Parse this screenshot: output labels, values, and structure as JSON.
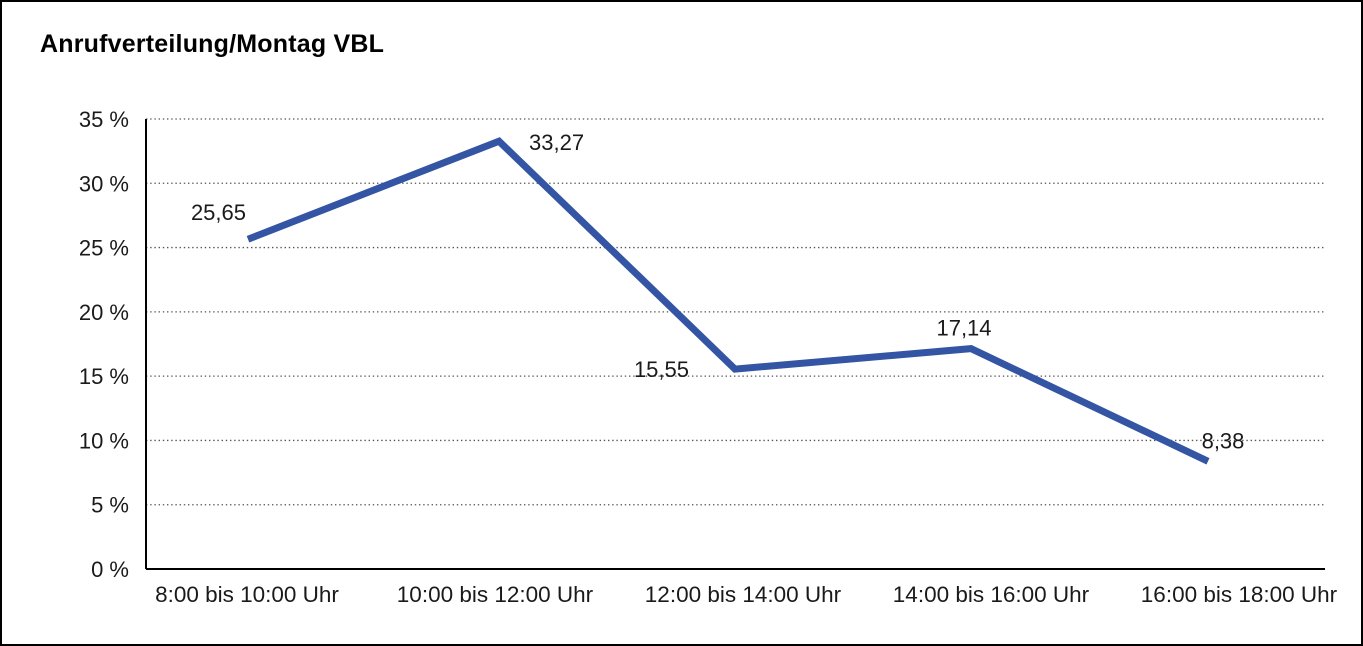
{
  "figure": {
    "title": "Anrufverteilung/Montag VBL"
  },
  "chart_data": {
    "type": "line",
    "title": "Anrufverteilung/Montag VBL",
    "categories": [
      "8:00 bis 10:00 Uhr",
      "10:00 bis 12:00 Uhr",
      "12:00 bis 14:00 Uhr",
      "14:00 bis 16:00 Uhr",
      "16:00 bis 18:00 Uhr"
    ],
    "values": [
      25.65,
      33.27,
      15.55,
      17.14,
      8.38
    ],
    "value_labels": [
      "25,65",
      "33,27",
      "15,55",
      "17,14",
      "8,38"
    ],
    "xlabel": "",
    "ylabel": "",
    "ylim": [
      0,
      35
    ],
    "ytick_step": 5,
    "ytick_labels": [
      "0 %",
      "5 %",
      "10 %",
      "15 %",
      "20 %",
      "25 %",
      "30 %",
      "35 %"
    ],
    "grid": "horizontal-dotted",
    "legend_position": "none",
    "colors": {
      "line": "#3454A4",
      "axis": "#000000",
      "gridline": "#555555",
      "text": "#1a1a1a",
      "background": "#ffffff",
      "border": "#000000"
    }
  }
}
